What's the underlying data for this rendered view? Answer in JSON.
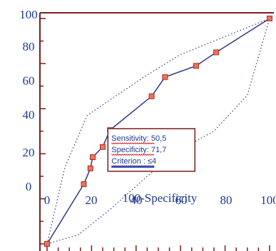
{
  "chart_data": {
    "type": "line",
    "title": "",
    "xlabel": "100-Specificity",
    "ylabel": "",
    "xlim": [
      0,
      100
    ],
    "ylim": [
      0,
      100
    ],
    "x_ticks": [
      "0",
      "20",
      "40",
      "60",
      "80",
      "100"
    ],
    "y_ticks": [
      "0",
      "20",
      "40",
      "60",
      "80",
      "100"
    ],
    "series": [
      {
        "values": [
          {
            "x": 0,
            "y": 0
          },
          {
            "x": 16.5,
            "y": 26.5
          },
          {
            "x": 19.5,
            "y": 33.5
          },
          {
            "x": 20.5,
            "y": 38.5
          },
          {
            "x": 25,
            "y": 43
          },
          {
            "x": 28.3,
            "y": 50.5
          },
          {
            "x": 47,
            "y": 65.5
          },
          {
            "x": 53,
            "y": 74
          },
          {
            "x": 67,
            "y": 79
          },
          {
            "x": 76,
            "y": 85
          },
          {
            "x": 100,
            "y": 100
          }
        ]
      }
    ],
    "confidence_upper": [
      {
        "x": 0,
        "y": 0
      },
      {
        "x": 8,
        "y": 34
      },
      {
        "x": 18,
        "y": 57
      },
      {
        "x": 30,
        "y": 65
      },
      {
        "x": 45,
        "y": 75
      },
      {
        "x": 60,
        "y": 84
      },
      {
        "x": 80,
        "y": 92
      },
      {
        "x": 100,
        "y": 100
      }
    ],
    "confidence_lower": [
      {
        "x": 0,
        "y": 0
      },
      {
        "x": 14,
        "y": 4
      },
      {
        "x": 28,
        "y": 15
      },
      {
        "x": 45,
        "y": 30
      },
      {
        "x": 60,
        "y": 42
      },
      {
        "x": 75,
        "y": 50
      },
      {
        "x": 90,
        "y": 66
      },
      {
        "x": 100,
        "y": 100
      }
    ],
    "grid": false,
    "legend": "none",
    "colors": {
      "axis": "#7a1e1e",
      "line": "#2b3a8c",
      "marker_fill": "#f07060",
      "marker_stroke": "#a83020",
      "label": "#1f3a93",
      "tooltip_border": "#7a1e1e",
      "squiggle": "#d02020"
    },
    "annotation": {
      "x": 28.3,
      "y": 50.5,
      "lines": [
        "Sensitivity: 50,5",
        "Specificity: 71,7",
        "Criterion : ≤4"
      ]
    }
  }
}
